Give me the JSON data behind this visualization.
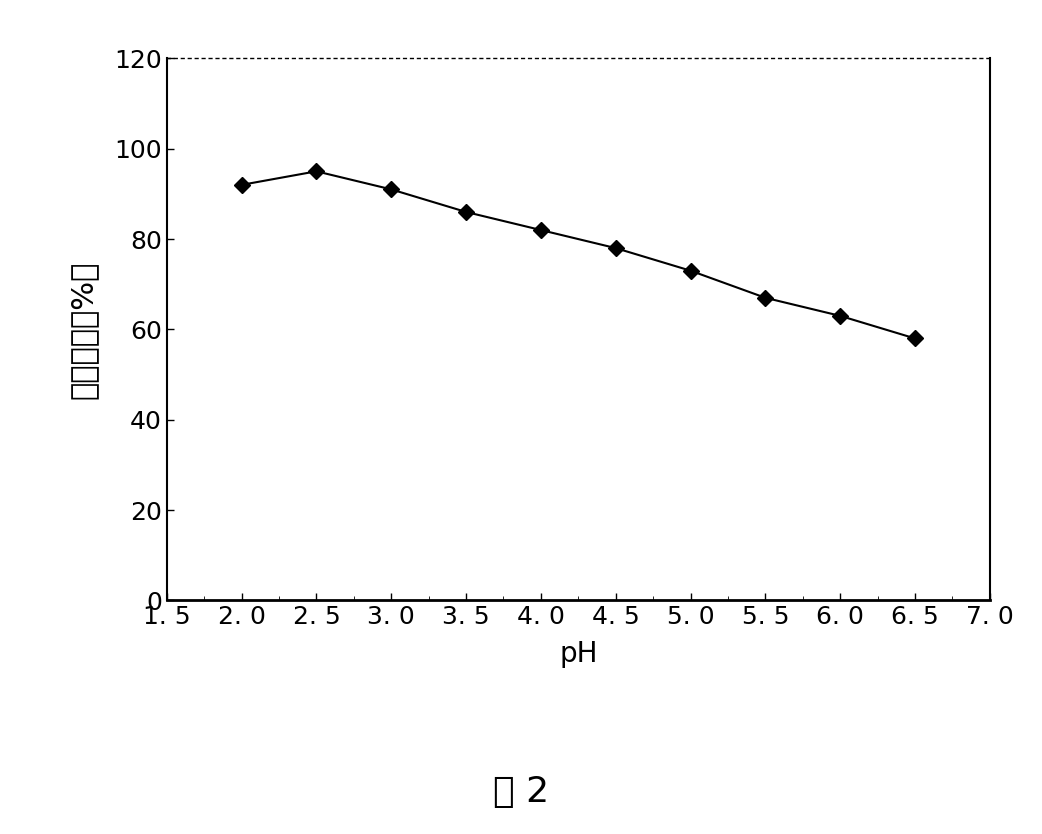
{
  "x": [
    2.0,
    2.5,
    3.0,
    3.5,
    4.0,
    4.5,
    5.0,
    5.5,
    6.0,
    6.5
  ],
  "y": [
    92,
    95,
    91,
    86,
    82,
    78,
    73,
    67,
    63,
    58
  ],
  "xlim": [
    1.5,
    7.0
  ],
  "ylim": [
    0,
    120
  ],
  "xticks": [
    1.5,
    2.0,
    2.5,
    3.0,
    3.5,
    4.0,
    4.5,
    5.0,
    5.5,
    6.0,
    6.5,
    7.0
  ],
  "xticklabels": [
    "1. 5",
    "2. 0",
    "2. 5",
    "3. 0",
    "3. 5",
    "4. 0",
    "4. 5",
    "5. 0",
    "5. 5",
    "6. 0",
    "6. 5",
    "7. 0"
  ],
  "yticks": [
    0,
    20,
    40,
    60,
    80,
    100,
    120
  ],
  "yticklabels": [
    "0",
    "20",
    "40",
    "60",
    "80",
    "100",
    "120"
  ],
  "ylabel": "相对酶活（%）",
  "xlabel": "pH",
  "caption": "图 2",
  "line_color": "#000000",
  "marker": "D",
  "marker_color": "#000000",
  "marker_size": 8,
  "line_width": 1.5,
  "bg_color": "#ffffff",
  "tick_fontsize": 18,
  "label_fontsize": 20,
  "caption_fontsize": 26,
  "ylabel_fontsize": 22
}
